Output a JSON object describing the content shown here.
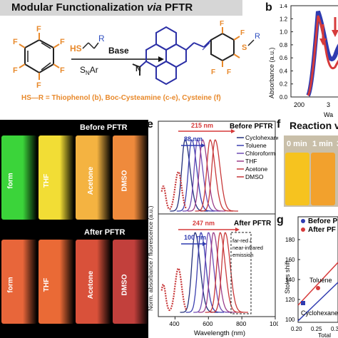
{
  "header": {
    "title_main": "Modular Functionalization ",
    "title_italic": "via",
    "title_end": " PFTR",
    "panel_b": "b",
    "panel_e": "e",
    "panel_f": "f",
    "panel_g": "g"
  },
  "scheme": {
    "thiol": "HS",
    "r_group": "R",
    "base": "Base",
    "snar_main": "S",
    "snar_sub": "N",
    "snar_end": "Ar",
    "fluorine": "F",
    "sulfur": "S",
    "r_product": "R",
    "nitrogen": "N",
    "thiol_list": "HS—R = Thiophenol (b), Boc-Cysteamine (c-e), Cysteine (f)"
  },
  "vials": {
    "before_label": "Before PFTR",
    "after_label": "After PFTR",
    "names": [
      "form",
      "THF",
      "Acetone",
      "DMSO"
    ],
    "before_colors": [
      "#3bd43a",
      "#f2dd35",
      "#f4b341",
      "#ef8a3c"
    ],
    "after_colors": [
      "#e8663a",
      "#ea6a36",
      "#d9513a",
      "#c2403c"
    ]
  },
  "panel_b": {
    "ylabel": "Absorbance (a.u.)",
    "xlabel": "Wa",
    "yticks": [
      "0.0",
      "0.2",
      "0.4",
      "0.6",
      "0.8",
      "1.0",
      "1.2",
      "1.4"
    ],
    "xticks": [
      "200",
      "3"
    ]
  },
  "panel_e": {
    "ylabel": "Norm. absorbance / fluorescence (a.u.)",
    "xlabel": "Wavelength (nm)",
    "xticks": [
      "400",
      "600",
      "800",
      "1000"
    ],
    "top_title": "Before PFTR",
    "bottom_title": "After PFTR",
    "top_shift": "215 nm",
    "top_small_shift": "88 nm",
    "bottom_shift": "247 nm",
    "bottom_small_shift": "100 nm",
    "box_label_1": "far-red /",
    "box_label_2": "near-infrared",
    "box_label_3": "emission",
    "legend": [
      "Cyclohexane",
      "Toluene",
      "Chloroform",
      "THF",
      "Acetone",
      "DMSO"
    ],
    "colors": [
      "#23307a",
      "#3b3fb0",
      "#6f4bb3",
      "#9c3f8a",
      "#c8393a",
      "#c8393a"
    ]
  },
  "chart_data": [
    {
      "type": "line",
      "panel": "e (top)",
      "title": "Before PFTR",
      "xlabel": "Wavelength (nm)",
      "ylabel": "Norm. absorbance / fluorescence (a.u.)",
      "xlim": [
        300,
        1000
      ],
      "series": [
        {
          "name": "Cyclohexane",
          "emission_peak_nm": 460
        },
        {
          "name": "Toluene",
          "emission_peak_nm": 500
        },
        {
          "name": "Chloroform",
          "emission_peak_nm": 535
        },
        {
          "name": "THF",
          "emission_peak_nm": 565
        },
        {
          "name": "Acetone",
          "emission_peak_nm": 610
        },
        {
          "name": "DMSO",
          "emission_peak_nm": 640
        }
      ],
      "absorption_peak_nm": 420,
      "annotations": [
        "215 nm",
        "88 nm"
      ]
    },
    {
      "type": "line",
      "panel": "e (bottom)",
      "title": "After PFTR",
      "xlabel": "Wavelength (nm)",
      "xlim": [
        300,
        1000
      ],
      "series": [
        {
          "name": "Cyclohexane",
          "emission_peak_nm": 520
        },
        {
          "name": "Toluene",
          "emission_peak_nm": 555
        },
        {
          "name": "Chloroform",
          "emission_peak_nm": 600
        },
        {
          "name": "THF",
          "emission_peak_nm": 630
        },
        {
          "name": "Acetone",
          "emission_peak_nm": 670
        },
        {
          "name": "DMSO",
          "emission_peak_nm": 700
        }
      ],
      "absorption_peak_nm": 420,
      "annotations": [
        "247 nm",
        "100 nm",
        "far-red / near-infrared emission"
      ]
    },
    {
      "type": "line",
      "panel": "b",
      "xlabel": "Wa",
      "ylabel": "Absorbance (a.u.)",
      "ylim": [
        0.0,
        1.4
      ],
      "yticks": [
        0.0,
        0.2,
        0.4,
        0.6,
        0.8,
        1.0,
        1.2,
        1.4
      ]
    },
    {
      "type": "scatter",
      "panel": "g",
      "ylabel": "Stokes shift",
      "xlabel": "Total",
      "xticks": [
        "0.20",
        "0.25",
        "0.3"
      ],
      "yticks": [
        "100",
        "120",
        "140",
        "160",
        "180"
      ],
      "legend": [
        "Before P",
        "After PF"
      ],
      "point_labels": [
        "Toluene",
        "Cyclohexane"
      ],
      "series": [
        {
          "name": "Before P",
          "color": "#2c3ea8"
        },
        {
          "name": "After PF",
          "color": "#d83a35"
        }
      ]
    }
  ],
  "panel_f": {
    "title": "Reaction v",
    "times": [
      "0 min",
      "1 min",
      "3"
    ]
  },
  "panel_g": {
    "ylabel": "Stokes shift",
    "xlabel": "Total",
    "legend_before": "Before P",
    "legend_after": "After PF",
    "label_toluene": "Toluene",
    "label_cyclohexane": "Cyclohexane",
    "xticks": [
      "0.20",
      "0.25",
      "0.3"
    ],
    "yticks": [
      "100",
      "120",
      "140",
      "160",
      "180"
    ]
  }
}
